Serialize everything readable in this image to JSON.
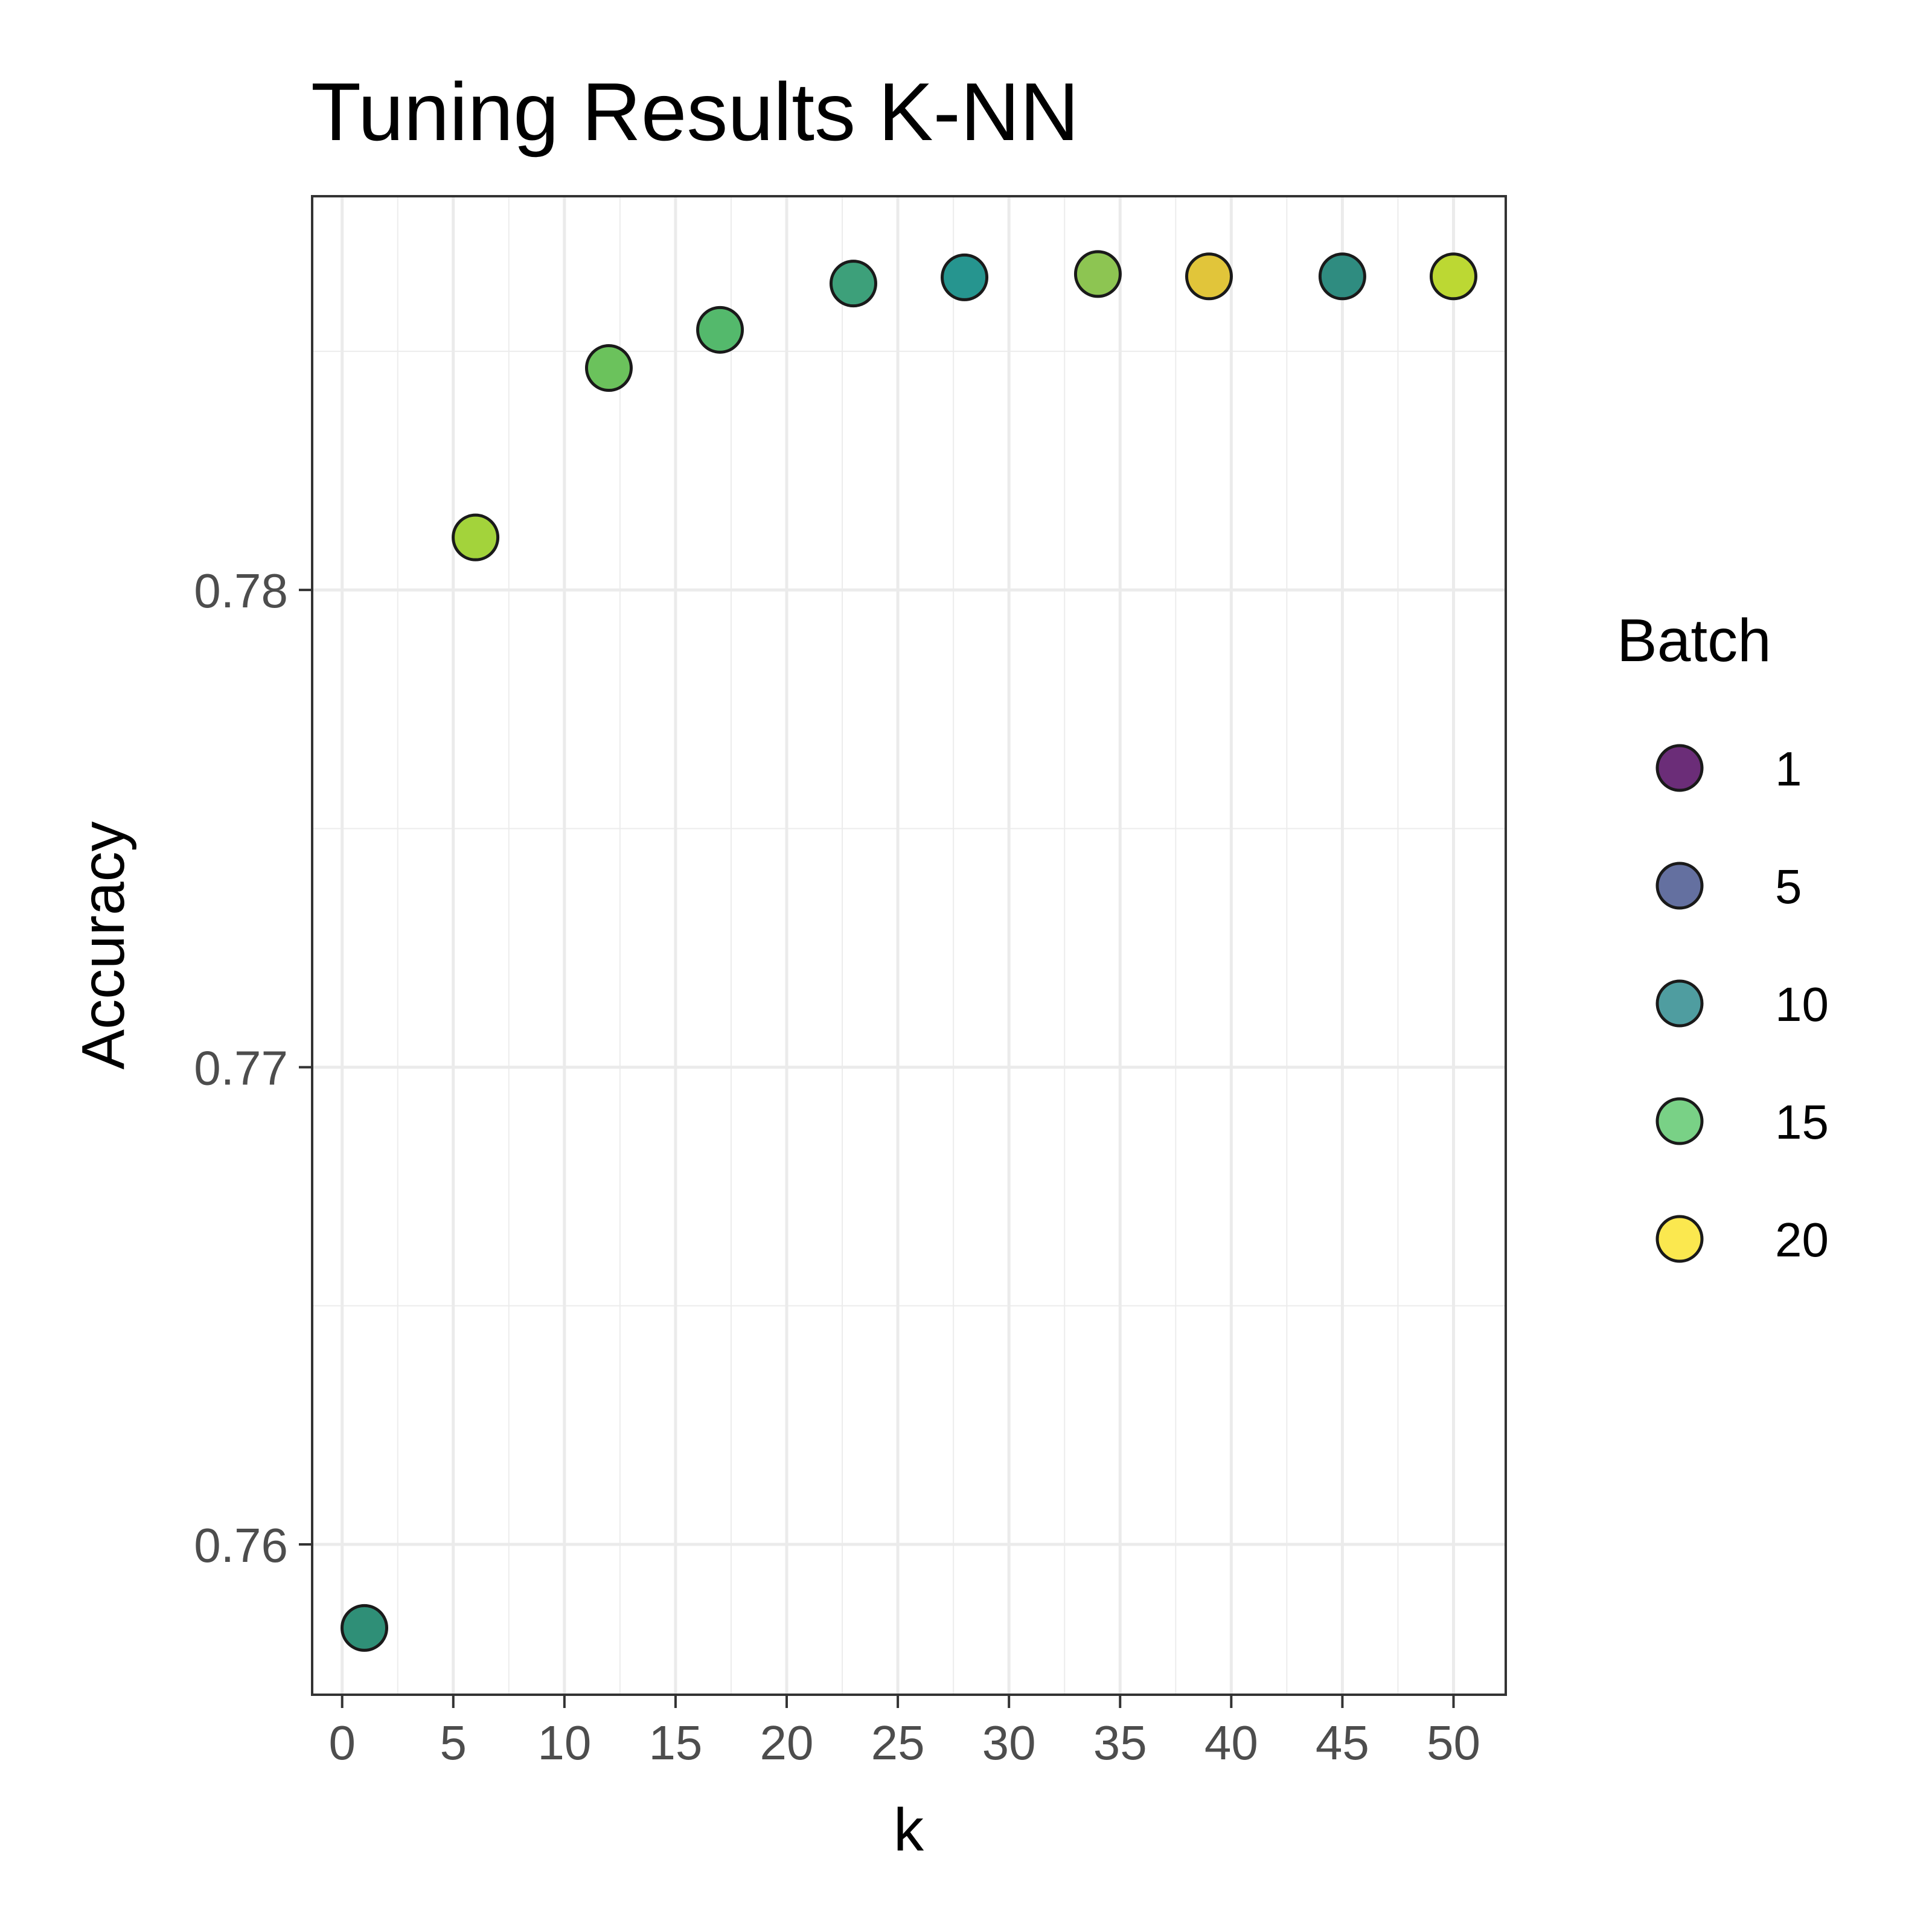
{
  "chart_data": {
    "type": "scatter",
    "title": "Tuning Results K-NN",
    "xlabel": "k",
    "ylabel": "Accuracy",
    "xlim": [
      -1.35,
      52.35
    ],
    "ylim": [
      0.75685,
      0.78825
    ],
    "xticks": [
      0,
      5,
      10,
      15,
      20,
      25,
      30,
      35,
      40,
      45,
      50
    ],
    "xtick_labels": [
      "0",
      "5",
      "10",
      "15",
      "20",
      "25",
      "30",
      "35",
      "40",
      "45",
      "50"
    ],
    "yticks": [
      0.76,
      0.77,
      0.78
    ],
    "ytick_labels": [
      "0.76",
      "0.77",
      "0.78"
    ],
    "grid": true,
    "legend": {
      "title": "Batch",
      "position": "right",
      "entries": [
        {
          "label": "1",
          "color": "#6b2d78"
        },
        {
          "label": "5",
          "color": "#6470a0"
        },
        {
          "label": "10",
          "color": "#4f9da0"
        },
        {
          "label": "15",
          "color": "#79d186"
        },
        {
          "label": "20",
          "color": "#fbe84f"
        }
      ]
    },
    "points": [
      {
        "x": 1,
        "y": 0.75825,
        "color": "#2f8f77"
      },
      {
        "x": 6,
        "y": 0.7811,
        "color": "#a3d33b"
      },
      {
        "x": 12,
        "y": 0.78465,
        "color": "#6bc25c"
      },
      {
        "x": 17,
        "y": 0.78545,
        "color": "#54b96c"
      },
      {
        "x": 23,
        "y": 0.78642,
        "color": "#3da07a"
      },
      {
        "x": 28,
        "y": 0.78655,
        "color": "#26958f"
      },
      {
        "x": 34,
        "y": 0.78662,
        "color": "#8dc552"
      },
      {
        "x": 39,
        "y": 0.78657,
        "color": "#e1c53a"
      },
      {
        "x": 45,
        "y": 0.78657,
        "color": "#2f8c80"
      },
      {
        "x": 50,
        "y": 0.78657,
        "color": "#bcd833"
      }
    ]
  }
}
